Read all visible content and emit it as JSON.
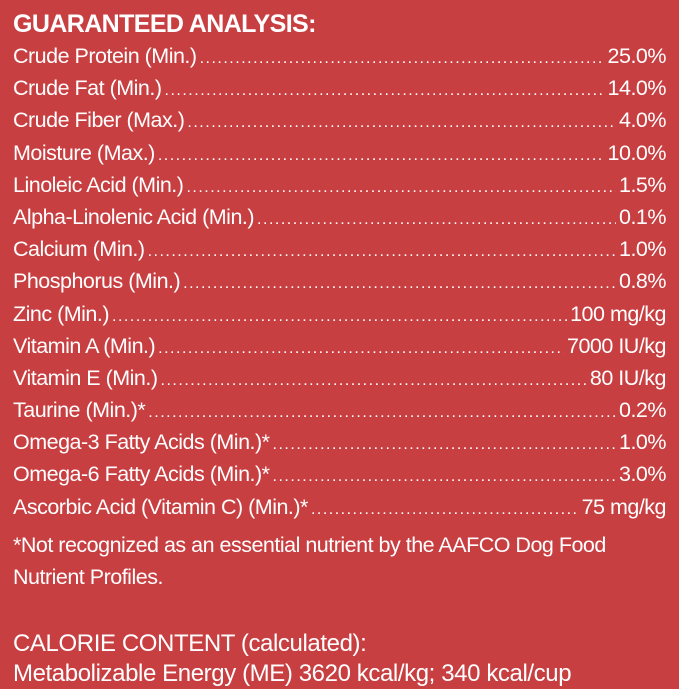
{
  "heading": "GUARANTEED ANALYSIS:",
  "dots": "..................................................................................................................................",
  "rows": [
    {
      "label": "Crude Protein (Min.)",
      "value": "25.0%"
    },
    {
      "label": "Crude Fat (Min.)",
      "value": "14.0%"
    },
    {
      "label": "Crude Fiber (Max.)",
      "value": "4.0%"
    },
    {
      "label": "Moisture (Max.)",
      "value": "10.0%"
    },
    {
      "label": "Linoleic Acid (Min.)",
      "value": "1.5%"
    },
    {
      "label": "Alpha-Linolenic Acid (Min.)",
      "value": "0.1%"
    },
    {
      "label": "Calcium (Min.)",
      "value": "1.0%"
    },
    {
      "label": "Phosphorus (Min.)",
      "value": "0.8%"
    },
    {
      "label": "Zinc (Min.)",
      "value": "100 mg/kg"
    },
    {
      "label": "Vitamin A (Min.)",
      "value": "7000 IU/kg"
    },
    {
      "label": "Vitamin E (Min.)",
      "value": "80 IU/kg"
    },
    {
      "label": "Taurine (Min.)*",
      "value": "0.2%"
    },
    {
      "label": "Omega-3 Fatty Acids (Min.)*",
      "value": "1.0%"
    },
    {
      "label": "Omega-6 Fatty Acids (Min.)*",
      "value": "3.0%"
    },
    {
      "label": "Ascorbic Acid (Vitamin C) (Min.)*",
      "value": "75 mg/kg"
    }
  ],
  "footnote": "*Not recognized as an essential nutrient by the AAFCO Dog Food Nutrient Profiles.",
  "calorie": {
    "heading": "CALORIE CONTENT (calculated):",
    "energy": "Metabolizable Energy (ME) 3620 kcal/kg;  340 kcal/cup"
  },
  "colors": {
    "background": "#c83f42",
    "text": "#ffffff"
  }
}
